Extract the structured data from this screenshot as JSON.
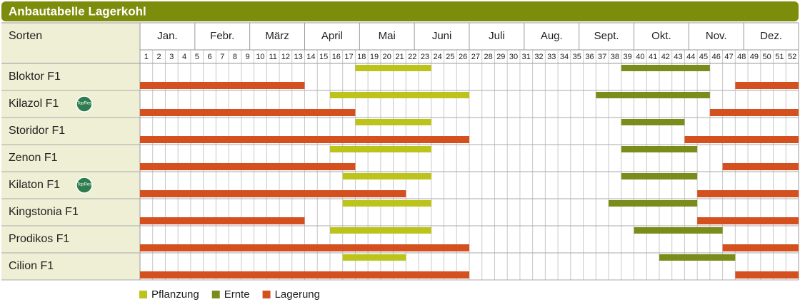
{
  "chart_data": {
    "type": "gantt",
    "title": "Anbautabelle Lagerkohl",
    "row_header": "Sorten",
    "months": [
      "Jan.",
      "Febr.",
      "März",
      "April",
      "Mai",
      "Juni",
      "Juli",
      "Aug.",
      "Sept.",
      "Okt.",
      "Nov.",
      "Dez."
    ],
    "weeks": [
      1,
      2,
      3,
      4,
      5,
      6,
      7,
      8,
      9,
      10,
      11,
      12,
      13,
      14,
      15,
      16,
      17,
      18,
      19,
      20,
      21,
      22,
      23,
      24,
      25,
      26,
      27,
      28,
      29,
      30,
      31,
      32,
      33,
      34,
      35,
      36,
      37,
      38,
      39,
      40,
      41,
      42,
      43,
      44,
      45,
      46,
      47,
      48,
      49,
      50,
      51,
      52
    ],
    "categories": [
      "Bloktor F1",
      "Kilazol F1",
      "Storidor F1",
      "Zenon F1",
      "Kilaton F1",
      "Kingstonia F1",
      "Prodikos F1",
      "Cilion F1"
    ],
    "badges": [
      null,
      "TopRes",
      null,
      null,
      "TopRes",
      null,
      null,
      null
    ],
    "series": [
      {
        "name": "Pflanzung",
        "color": "#bcc41c",
        "lane": "top",
        "values": [
          [
            [
              18,
              23
            ]
          ],
          [
            [
              16,
              26
            ]
          ],
          [
            [
              18,
              23
            ]
          ],
          [
            [
              16,
              23
            ]
          ],
          [
            [
              17,
              23
            ]
          ],
          [
            [
              17,
              23
            ]
          ],
          [
            [
              16,
              23
            ]
          ],
          [
            [
              17,
              21
            ]
          ]
        ]
      },
      {
        "name": "Ernte",
        "color": "#7a8c1a",
        "lane": "top",
        "values": [
          [
            [
              39,
              45
            ]
          ],
          [
            [
              37,
              45
            ]
          ],
          [
            [
              39,
              43
            ]
          ],
          [
            [
              39,
              44
            ]
          ],
          [
            [
              39,
              44
            ]
          ],
          [
            [
              38,
              44
            ]
          ],
          [
            [
              40,
              46
            ]
          ],
          [
            [
              42,
              47
            ]
          ]
        ]
      },
      {
        "name": "Lagerung",
        "color": "#d4501e",
        "lane": "bottom",
        "values": [
          [
            [
              1,
              13
            ],
            [
              48,
              52
            ]
          ],
          [
            [
              1,
              17
            ],
            [
              46,
              52
            ]
          ],
          [
            [
              1,
              26
            ],
            [
              44,
              52
            ]
          ],
          [
            [
              1,
              17
            ],
            [
              47,
              52
            ]
          ],
          [
            [
              1,
              21
            ],
            [
              45,
              52
            ]
          ],
          [
            [
              1,
              13
            ],
            [
              45,
              52
            ]
          ],
          [
            [
              1,
              26
            ],
            [
              47,
              52
            ]
          ],
          [
            [
              1,
              26
            ],
            [
              48,
              52
            ]
          ]
        ]
      }
    ]
  }
}
